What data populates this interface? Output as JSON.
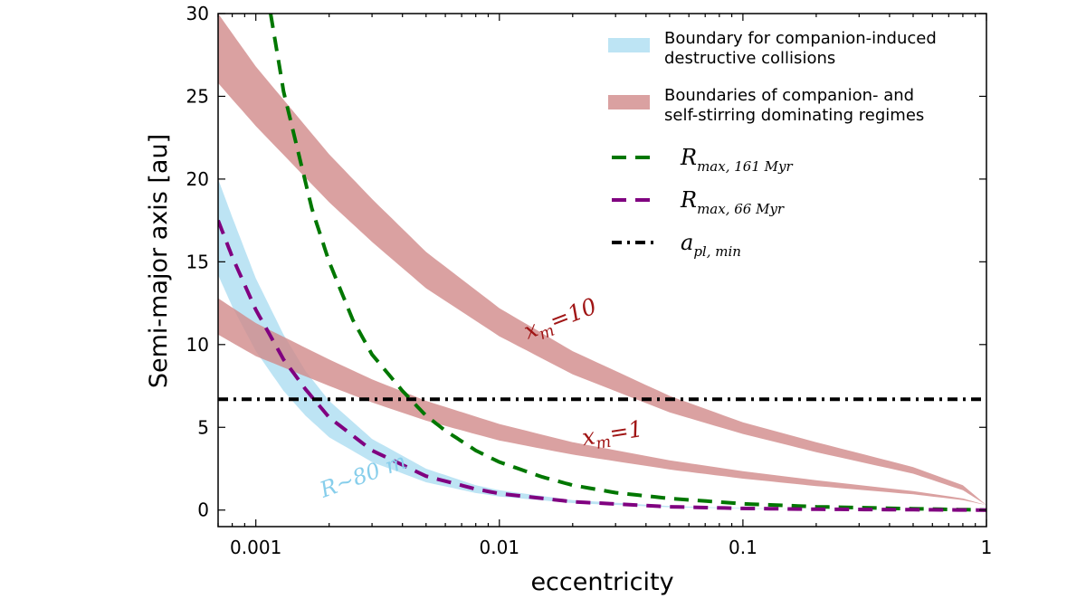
{
  "chart_data": {
    "type": "line",
    "xlabel": "eccentricity",
    "ylabel": "Semi-major axis [au]",
    "xscale": "log",
    "xlim": [
      0.0007,
      1
    ],
    "ylim": [
      -1,
      30
    ],
    "xticks": [
      {
        "value": 0.001,
        "label": "0.001"
      },
      {
        "value": 0.01,
        "label": "0.01"
      },
      {
        "value": 0.1,
        "label": "0.1"
      },
      {
        "value": 1,
        "label": "1"
      }
    ],
    "yticks": [
      {
        "value": 0,
        "label": "0"
      },
      {
        "value": 5,
        "label": "5"
      },
      {
        "value": 10,
        "label": "10"
      },
      {
        "value": 15,
        "label": "15"
      },
      {
        "value": 20,
        "label": "20"
      },
      {
        "value": 25,
        "label": "25"
      },
      {
        "value": 30,
        "label": "30"
      }
    ],
    "series": [
      {
        "name": "Boundary for companion-induced destructive collisions",
        "kind": "band",
        "color": "#87ceeb",
        "x": [
          0.0007,
          0.0008,
          0.001,
          0.0013,
          0.0016,
          0.002,
          0.003,
          0.005,
          0.008,
          0.01,
          0.02,
          0.05,
          0.1,
          0.2,
          0.5,
          1.0
        ],
        "lower": [
          14.2,
          12.3,
          9.6,
          7.2,
          5.7,
          4.4,
          2.9,
          1.68,
          1.03,
          0.82,
          0.42,
          0.17,
          0.09,
          0.05,
          0.02,
          0.0
        ],
        "upper": [
          20.0,
          17.7,
          14.0,
          10.6,
          8.4,
          6.6,
          4.3,
          2.5,
          1.5,
          1.2,
          0.6,
          0.24,
          0.12,
          0.06,
          0.025,
          0.0
        ]
      },
      {
        "name": "Boundaries of companion- and self-stirring dominating regimes",
        "kind": "band",
        "label": "x_m = 10",
        "color": "#d18a8a",
        "x": [
          0.0007,
          0.001,
          0.002,
          0.003,
          0.005,
          0.01,
          0.02,
          0.05,
          0.1,
          0.2,
          0.5,
          0.8,
          1.0
        ],
        "lower": [
          25.8,
          23.2,
          18.6,
          16.2,
          13.4,
          10.5,
          8.2,
          5.9,
          4.6,
          3.5,
          2.2,
          1.2,
          0.3
        ],
        "upper": [
          30.0,
          26.8,
          21.5,
          18.8,
          15.6,
          12.2,
          9.6,
          6.9,
          5.3,
          4.1,
          2.6,
          1.5,
          0.3
        ]
      },
      {
        "name": "Boundaries of companion- and self-stirring dominating regimes",
        "kind": "band",
        "label": "x_m = 1",
        "color": "#d18a8a",
        "x": [
          0.0007,
          0.001,
          0.002,
          0.003,
          0.005,
          0.01,
          0.02,
          0.05,
          0.1,
          0.2,
          0.5,
          0.8,
          1.0
        ],
        "lower": [
          10.6,
          9.3,
          7.5,
          6.5,
          5.4,
          4.2,
          3.35,
          2.45,
          1.9,
          1.45,
          0.95,
          0.6,
          0.3
        ],
        "upper": [
          12.8,
          11.3,
          9.1,
          7.9,
          6.6,
          5.2,
          4.1,
          3.0,
          2.35,
          1.8,
          1.15,
          0.7,
          0.3
        ]
      },
      {
        "name": "R_max, 161 Myr",
        "kind": "line",
        "style": "dashed",
        "color": "#007700",
        "x": [
          0.00115,
          0.0013,
          0.0015,
          0.0017,
          0.002,
          0.0025,
          0.003,
          0.004,
          0.005,
          0.006,
          0.008,
          0.01,
          0.015,
          0.02,
          0.03,
          0.05,
          0.1,
          0.2,
          0.5,
          1.0
        ],
        "y": [
          30.0,
          25.3,
          21.5,
          18.2,
          15.0,
          11.5,
          9.4,
          7.2,
          5.7,
          4.8,
          3.6,
          2.9,
          2.0,
          1.5,
          1.05,
          0.7,
          0.38,
          0.2,
          0.08,
          0.0
        ]
      },
      {
        "name": "R_max, 66 Myr",
        "kind": "line",
        "style": "dashed",
        "color": "#800080",
        "x": [
          0.0007,
          0.0008,
          0.001,
          0.0013,
          0.0016,
          0.002,
          0.003,
          0.005,
          0.008,
          0.01,
          0.02,
          0.05,
          0.1,
          0.2,
          0.5,
          1.0
        ],
        "y": [
          17.5,
          15.3,
          12.1,
          9.1,
          7.3,
          5.6,
          3.6,
          2.05,
          1.27,
          1.0,
          0.5,
          0.2,
          0.1,
          0.05,
          0.02,
          0.0
        ]
      },
      {
        "name": "a_pl, min",
        "kind": "line",
        "style": "dashdot",
        "color": "#000000",
        "x": [
          0.0007,
          1.0
        ],
        "y": [
          6.7,
          6.7
        ]
      }
    ],
    "legend": {
      "placement": "top-right",
      "entries": [
        {
          "kind": "band",
          "color": "#87ceeb",
          "lines": [
            "Boundary for companion-induced",
            "destructive collisions"
          ]
        },
        {
          "kind": "band",
          "color": "#d18a8a",
          "lines": [
            "Boundaries of companion- and",
            "self-stirring dominating regimes"
          ]
        },
        {
          "kind": "line",
          "style": "dashed",
          "color": "#007700",
          "math_main": "R",
          "math_sub": "max, 161 Myr"
        },
        {
          "kind": "line",
          "style": "dashed",
          "color": "#800080",
          "math_main": "R",
          "math_sub": "max, 66 Myr"
        },
        {
          "kind": "line",
          "style": "dashdot",
          "color": "#000000",
          "math_main": "a",
          "math_sub": "pl, min"
        }
      ]
    },
    "annotations": [
      {
        "id": "xm10",
        "text": "x",
        "sub": "m",
        "rest": "=10",
        "color": "#a01515",
        "rotation": -21
      },
      {
        "id": "xm1",
        "text": "x",
        "sub": "m",
        "rest": "=1",
        "color": "#a01515",
        "rotation": -9
      },
      {
        "id": "r80",
        "text": "R∼80 m",
        "color": "#87ceeb",
        "rotation": -20
      }
    ]
  }
}
